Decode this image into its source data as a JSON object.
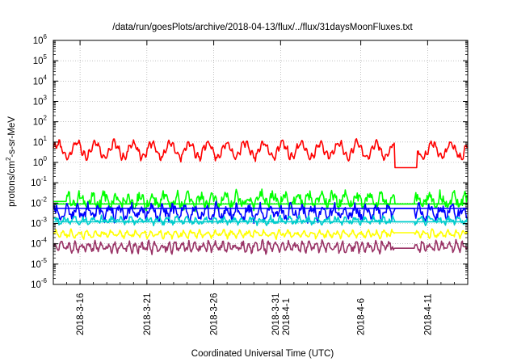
{
  "chart_data": {
    "type": "line",
    "title": "/data/run/goesPlots/archive/2018-04-13/flux/../flux/31daysMoonFluxes.txt",
    "xlabel": "Coordinated Universal Time (UTC)",
    "ylabel": {
      "prefix": "protons/cm",
      "sup": "2",
      "suffix": "-s-sr-MeV"
    },
    "yscale": "log",
    "ylim_exponents": [
      -6,
      6
    ],
    "y_ticks": [
      {
        "base": "10",
        "exp": "-6"
      },
      {
        "base": "10",
        "exp": "-5"
      },
      {
        "base": "10",
        "exp": "-4"
      },
      {
        "base": "10",
        "exp": "-3"
      },
      {
        "base": "10",
        "exp": "-2"
      },
      {
        "base": "10",
        "exp": "-1"
      },
      {
        "base": "10",
        "exp": "0"
      },
      {
        "base": "10",
        "exp": "1"
      },
      {
        "base": "10",
        "exp": "2"
      },
      {
        "base": "10",
        "exp": "3"
      },
      {
        "base": "10",
        "exp": "4"
      },
      {
        "base": "10",
        "exp": "5"
      },
      {
        "base": "10",
        "exp": "6"
      }
    ],
    "xlim_days": [
      0,
      31
    ],
    "x_ticks": [
      {
        "day": 2,
        "lines": [
          "2018-3-16"
        ]
      },
      {
        "day": 7,
        "lines": [
          "2018-3-21"
        ]
      },
      {
        "day": 12,
        "lines": [
          "2018-3-26"
        ]
      },
      {
        "day": 17,
        "lines": [
          "2018-3-31",
          "2018-4-1"
        ]
      },
      {
        "day": 23,
        "lines": [
          "2018-4-6"
        ]
      },
      {
        "day": 28,
        "lines": [
          "2018-4-11"
        ]
      }
    ],
    "grid": true,
    "series": [
      {
        "color": "#ff0000",
        "base": 4.0,
        "amp": 0.35,
        "noise": 0.12,
        "cycle": 1.4,
        "seed": 11,
        "gaps": [
          {
            "start": 25.5,
            "end": 27.2,
            "value": 0.55
          }
        ]
      },
      {
        "color": "#00ff00",
        "base": 0.014,
        "amp": 0.25,
        "noise": 0.25,
        "cycle": 0.9,
        "seed": 23,
        "flat": 0.009,
        "gaps": [
          {
            "start": 0.0,
            "end": 1.0,
            "value": 0.012
          },
          {
            "start": 25.5,
            "end": 27.0,
            "value": 0.009
          }
        ]
      },
      {
        "color": "#0000ff",
        "base": 0.0035,
        "amp": 0.25,
        "noise": 0.22,
        "cycle": 0.8,
        "seed": 37,
        "flat": 0.0055,
        "gaps": [
          {
            "start": 25.5,
            "end": 27.0,
            "value": 0.0055
          }
        ]
      },
      {
        "color": "#00cccc",
        "base": 0.0014,
        "amp": 0.12,
        "noise": 0.12,
        "cycle": 0.7,
        "seed": 41,
        "flat": 0.0012,
        "gaps": [
          {
            "start": 25.5,
            "end": 27.0,
            "value": 0.0012
          }
        ]
      },
      {
        "color": "#ffff00",
        "base": 0.0003,
        "amp": 0.12,
        "noise": 0.1,
        "cycle": 0.6,
        "seed": 53,
        "gaps": [
          {
            "start": 25.5,
            "end": 27.0,
            "value": 0.00035
          }
        ]
      },
      {
        "color": "#993366",
        "base": 7e-05,
        "amp": 0.18,
        "noise": 0.15,
        "cycle": 0.5,
        "seed": 67,
        "gaps": [
          {
            "start": 25.5,
            "end": 27.0,
            "value": 6e-05
          }
        ]
      }
    ]
  }
}
